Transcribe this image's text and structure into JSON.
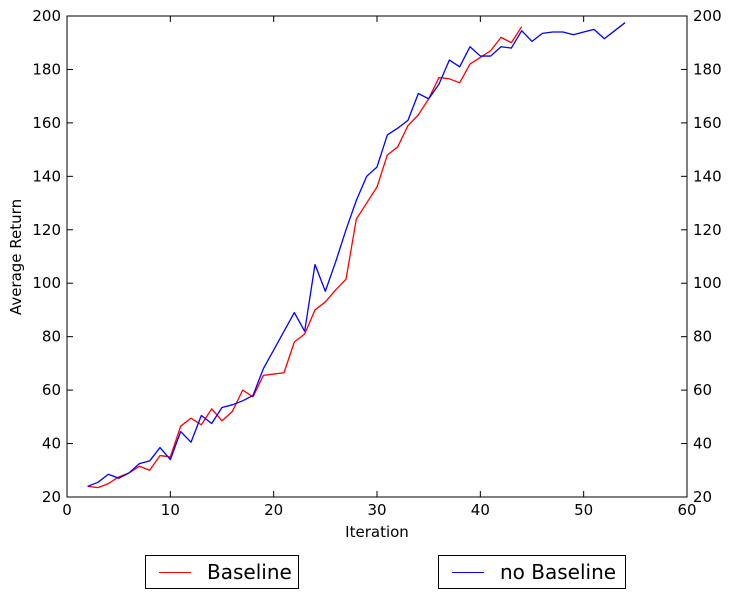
{
  "chart_data": {
    "type": "line",
    "title": "",
    "xlabel": "Iteration",
    "ylabel": "Average Return",
    "xlim": [
      0,
      60
    ],
    "ylim": [
      20,
      200
    ],
    "xticks": [
      0,
      10,
      20,
      30,
      40,
      50,
      60
    ],
    "yticks": [
      20,
      40,
      60,
      80,
      100,
      120,
      140,
      160,
      180,
      200
    ],
    "secondary_y_axis": true,
    "grid": false,
    "legend_placement": "below",
    "series": [
      {
        "name": "Baseline",
        "color": "#ff0000",
        "x": [
          2,
          3,
          4,
          5,
          6,
          7,
          8,
          9,
          10,
          11,
          12,
          13,
          14,
          15,
          16,
          17,
          18,
          19,
          20,
          21,
          22,
          23,
          24,
          25,
          26,
          27,
          28,
          29,
          30,
          31,
          32,
          33,
          34,
          35,
          36,
          37,
          38,
          39,
          40,
          41,
          42,
          43,
          44
        ],
        "y": [
          24,
          23.5,
          25,
          27.5,
          29,
          31.5,
          30,
          35.5,
          35,
          46.5,
          49.5,
          47,
          53,
          48.5,
          52,
          60,
          57.5,
          65.5,
          66,
          66.5,
          78,
          81,
          90,
          93,
          97.5,
          101.5,
          124,
          130,
          136,
          148,
          151,
          159,
          163,
          169,
          177,
          176.5,
          175,
          182,
          184.5,
          187,
          192,
          190,
          196
        ]
      },
      {
        "name": "no Baseline",
        "color": "#0000ff",
        "x": [
          2,
          3,
          4,
          5,
          6,
          7,
          8,
          9,
          10,
          11,
          12,
          13,
          14,
          15,
          16,
          17,
          18,
          19,
          20,
          21,
          22,
          23,
          24,
          25,
          26,
          27,
          28,
          29,
          30,
          31,
          32,
          33,
          34,
          35,
          36,
          37,
          38,
          39,
          40,
          41,
          42,
          43,
          44,
          45,
          46,
          47,
          48,
          49,
          50,
          51,
          52,
          53,
          54
        ],
        "y": [
          24,
          25.5,
          28.5,
          27,
          29,
          32.5,
          33.5,
          38.5,
          34,
          44.5,
          40.5,
          50.5,
          47.5,
          53.5,
          54.5,
          56,
          58,
          68,
          75,
          82,
          89,
          82,
          107,
          97,
          108,
          120,
          131,
          140,
          143.5,
          155.5,
          158,
          161,
          171,
          169,
          174.5,
          183.5,
          181,
          188.5,
          185,
          185,
          188.5,
          188,
          194.5,
          190.5,
          193.5,
          194,
          194,
          193,
          194,
          195,
          191.5,
          194.5,
          197.5
        ]
      }
    ]
  }
}
